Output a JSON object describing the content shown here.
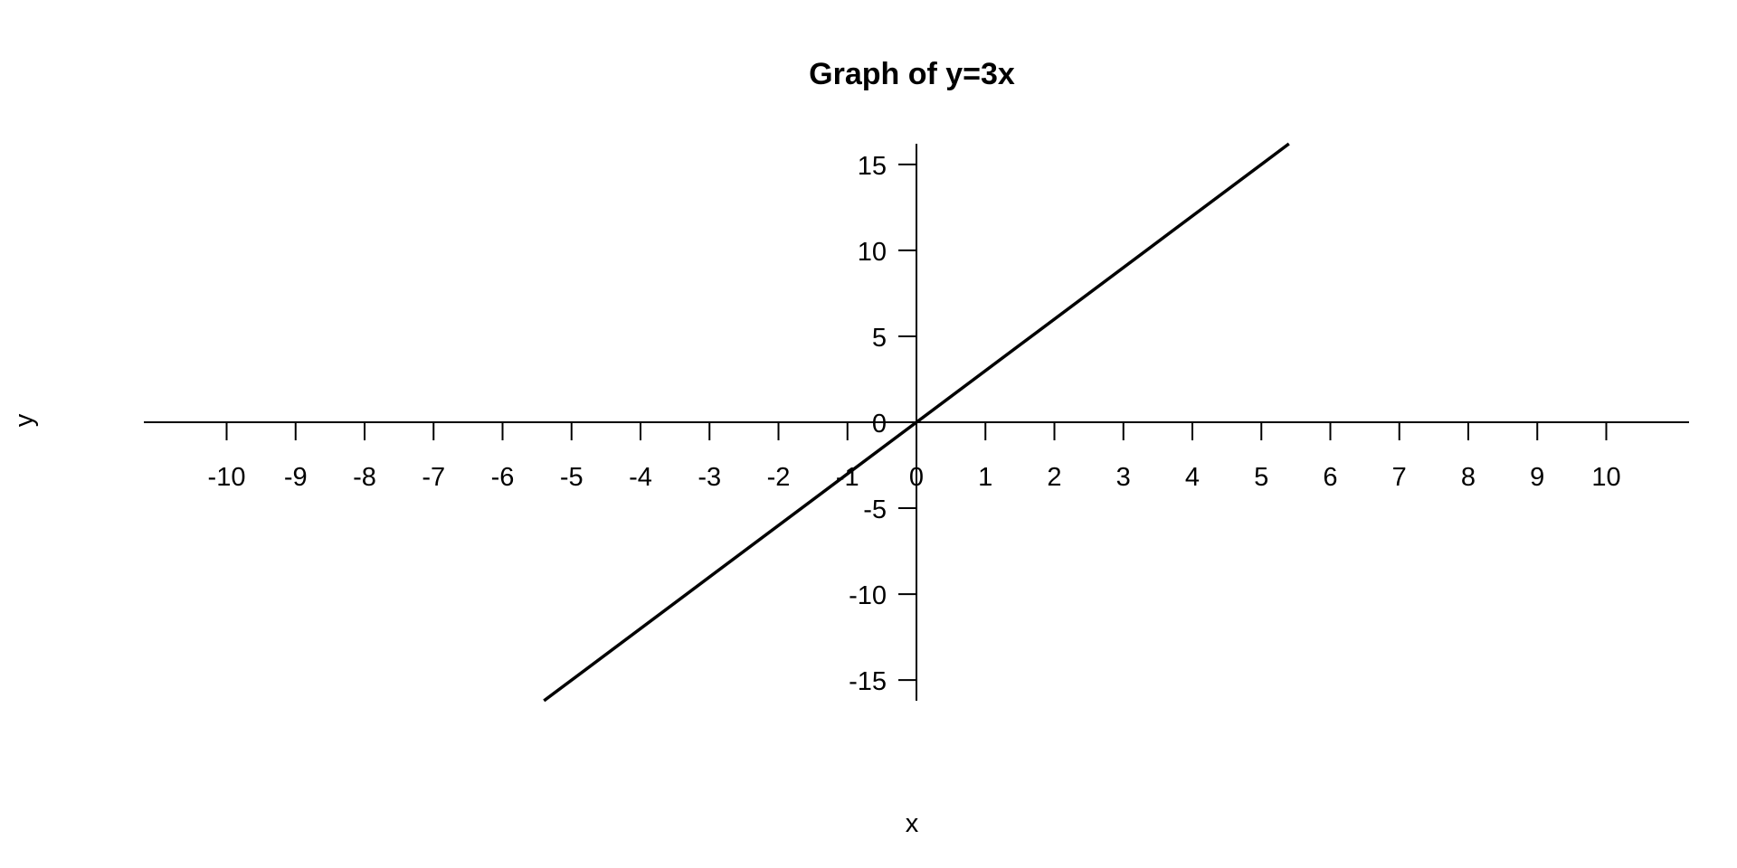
{
  "chart_data": {
    "type": "line",
    "title": "Graph of y=3x",
    "xlabel": "x",
    "ylabel": "y",
    "xlim": [
      -11.2,
      11.2
    ],
    "ylim": [
      -16.2,
      16.2
    ],
    "xticks": [
      -10,
      -9,
      -8,
      -7,
      -6,
      -5,
      -4,
      -3,
      -2,
      -1,
      0,
      1,
      2,
      3,
      4,
      5,
      6,
      7,
      8,
      9,
      10
    ],
    "xtick_labels": [
      "-10",
      "-9",
      "-8",
      "-7",
      "-6",
      "-5",
      "-4",
      "-3",
      "-2",
      "-1",
      "0",
      "1",
      "2",
      "3",
      "4",
      "5",
      "6",
      "7",
      "8",
      "9",
      "10"
    ],
    "yticks": [
      -15,
      -10,
      -5,
      0,
      5,
      10,
      15
    ],
    "ytick_labels": [
      "-15",
      "-10",
      "-5",
      "0",
      "5",
      "10",
      "15"
    ],
    "grid": false,
    "series": [
      {
        "x": [
          -5.4,
          0,
          5.4
        ],
        "values": [
          -16.2,
          0,
          16.2
        ],
        "color": "#000000"
      }
    ]
  }
}
